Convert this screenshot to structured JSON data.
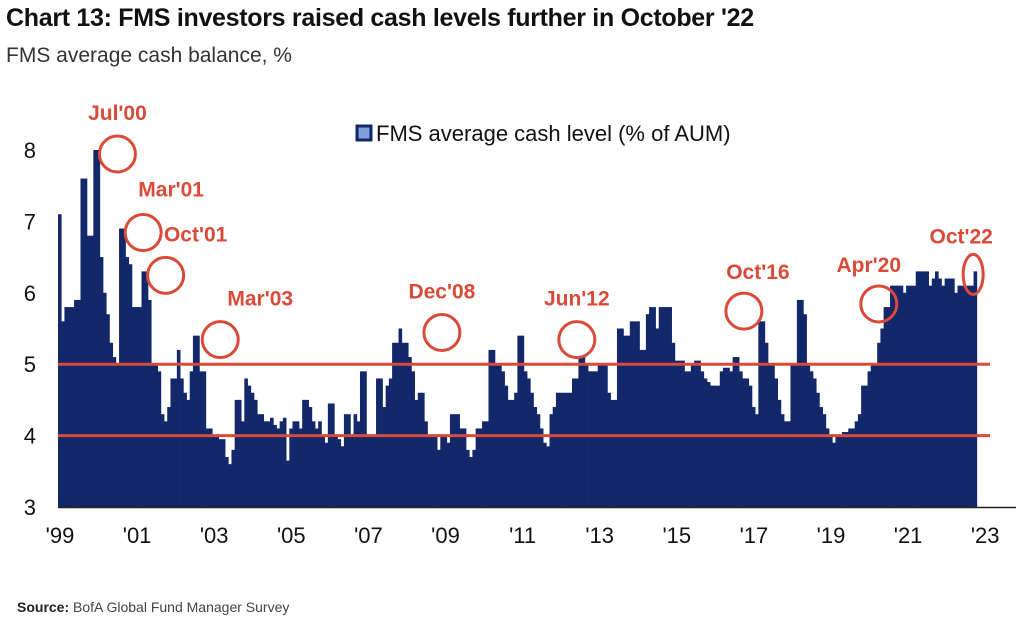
{
  "header": {
    "title": "Chart 13: FMS investors raised cash levels further in October '22",
    "subtitle": "FMS average cash balance, %"
  },
  "footer": {
    "source_label": "Source:",
    "source_text": " BofA Global Fund Manager Survey"
  },
  "chart_data": {
    "type": "bar",
    "title": "Chart 13: FMS investors raised cash levels further in October '22",
    "subtitle": "FMS average cash balance, %",
    "xlabel": "",
    "ylabel": "",
    "ylim": [
      3,
      8.2
    ],
    "yticks": [
      3,
      4,
      5,
      6,
      7,
      8
    ],
    "xlim": [
      1999.0,
      2023.4
    ],
    "xticks": [
      {
        "value": 1999,
        "label": "'99"
      },
      {
        "value": 2001,
        "label": "'01"
      },
      {
        "value": 2003,
        "label": "'03"
      },
      {
        "value": 2005,
        "label": "'05"
      },
      {
        "value": 2007,
        "label": "'07"
      },
      {
        "value": 2009,
        "label": "'09"
      },
      {
        "value": 2011,
        "label": "'11"
      },
      {
        "value": 2013,
        "label": "'13"
      },
      {
        "value": 2015,
        "label": "'15"
      },
      {
        "value": 2017,
        "label": "'17"
      },
      {
        "value": 2019,
        "label": "'19"
      },
      {
        "value": 2021,
        "label": "'21"
      },
      {
        "value": 2023,
        "label": "'23"
      }
    ],
    "legend": {
      "position": "top-center",
      "entries": [
        {
          "name": "FMS average cash level (% of AUM)",
          "color": "#13276b"
        }
      ]
    },
    "series": [
      {
        "name": "FMS average cash level (% of AUM)",
        "color": "#13276b",
        "start": "1999-01",
        "frequency": "monthly",
        "values": [
          7.1,
          5.6,
          5.8,
          5.8,
          5.8,
          5.9,
          5.9,
          7.6,
          7.6,
          6.8,
          6.8,
          8.0,
          8.0,
          6.5,
          6.0,
          5.7,
          5.3,
          5.1,
          5.0,
          6.9,
          6.9,
          6.5,
          6.4,
          5.8,
          5.8,
          5.8,
          6.3,
          6.3,
          5.9,
          5.0,
          5.0,
          4.9,
          4.3,
          4.2,
          4.4,
          4.8,
          4.8,
          5.2,
          4.8,
          4.6,
          4.5,
          4.9,
          5.4,
          5.4,
          4.9,
          4.9,
          4.1,
          4.1,
          4.0,
          4.0,
          3.95,
          3.95,
          3.7,
          3.6,
          3.8,
          4.5,
          4.5,
          4.2,
          4.8,
          4.7,
          4.6,
          4.5,
          4.3,
          4.3,
          4.2,
          4.2,
          4.25,
          4.15,
          4.1,
          4.2,
          4.25,
          3.65,
          4.1,
          4.2,
          4.2,
          4.1,
          4.5,
          4.5,
          4.4,
          4.2,
          4.1,
          4.2,
          4.0,
          3.9,
          4.45,
          4.45,
          4.0,
          3.95,
          3.85,
          4.3,
          4.3,
          4.0,
          4.3,
          4.2,
          4.9,
          4.9,
          4.0,
          4.0,
          4.0,
          4.8,
          4.8,
          4.4,
          4.7,
          4.8,
          5.3,
          5.3,
          5.5,
          5.3,
          5.3,
          5.1,
          4.9,
          4.5,
          4.6,
          4.6,
          4.2,
          4.0,
          4.0,
          4.0,
          3.8,
          4.0,
          4.0,
          3.9,
          4.3,
          4.3,
          4.3,
          4.1,
          4.1,
          3.8,
          3.7,
          3.8,
          4.1,
          4.1,
          4.2,
          4.2,
          5.2,
          5.2,
          5.0,
          5.0,
          4.9,
          4.7,
          4.5,
          4.5,
          4.6,
          5.4,
          5.4,
          4.9,
          4.8,
          4.6,
          4.4,
          4.3,
          4.1,
          3.9,
          3.85,
          4.3,
          4.4,
          4.6,
          4.6,
          4.6,
          4.6,
          4.6,
          4.8,
          4.8,
          5.1,
          5.1,
          5.0,
          4.9,
          4.9,
          4.9,
          5.0,
          5.0,
          5.0,
          4.6,
          4.5,
          4.5,
          5.5,
          5.5,
          5.4,
          5.4,
          5.6,
          5.6,
          5.6,
          5.2,
          5.2,
          5.7,
          5.8,
          5.8,
          5.5,
          5.8,
          5.8,
          5.8,
          5.8,
          5.3,
          5.05,
          5.05,
          5.05,
          4.9,
          4.9,
          5.0,
          5.05,
          5.05,
          4.9,
          4.8,
          4.75,
          4.7,
          4.7,
          4.7,
          4.9,
          4.95,
          4.95,
          4.9,
          5.1,
          5.1,
          4.9,
          4.8,
          4.8,
          4.7,
          4.4,
          4.3,
          5.6,
          5.6,
          5.3,
          5.0,
          5.0,
          4.8,
          4.5,
          4.3,
          4.2,
          4.2,
          5.0,
          5.0,
          5.9,
          5.9,
          5.7,
          5.0,
          4.9,
          4.8,
          4.6,
          4.4,
          4.3,
          4.1,
          4.0,
          3.9,
          4.0,
          4.0,
          4.05,
          4.05,
          4.1,
          4.1,
          4.2,
          4.3,
          4.7,
          4.7,
          4.9,
          5.0,
          5.0,
          5.3,
          5.5,
          5.8,
          5.8,
          6.1,
          6.1,
          6.1,
          6.1,
          6.0,
          6.1,
          6.1,
          6.1,
          6.3,
          6.3,
          6.3,
          6.3,
          6.1,
          6.2,
          6.3,
          6.2,
          6.1,
          6.2,
          6.2,
          6.2,
          6.0,
          6.1,
          6.1,
          6.1,
          6.1,
          6.1,
          6.3
        ]
      }
    ],
    "reference_lines": [
      {
        "value": 5.0,
        "color": "#d94a38"
      },
      {
        "value": 4.0,
        "color": "#d94a38"
      }
    ],
    "annotations": [
      {
        "label": "Jul'00",
        "date": "2000-07",
        "value": 8.0
      },
      {
        "label": "Mar'01",
        "date": "2001-03",
        "value": 6.9
      },
      {
        "label": "Oct'01",
        "date": "2001-10",
        "value": 6.3
      },
      {
        "label": "Mar'03",
        "date": "2003-03",
        "value": 5.4
      },
      {
        "label": "Dec'08",
        "date": "2008-12",
        "value": 5.5
      },
      {
        "label": "Jun'12",
        "date": "2012-06",
        "value": 5.4
      },
      {
        "label": "Oct'16",
        "date": "2016-10",
        "value": 5.8
      },
      {
        "label": "Apr'20",
        "date": "2020-04",
        "value": 5.9
      },
      {
        "label": "Oct'22",
        "date": "2022-10",
        "value": 6.3
      }
    ]
  }
}
